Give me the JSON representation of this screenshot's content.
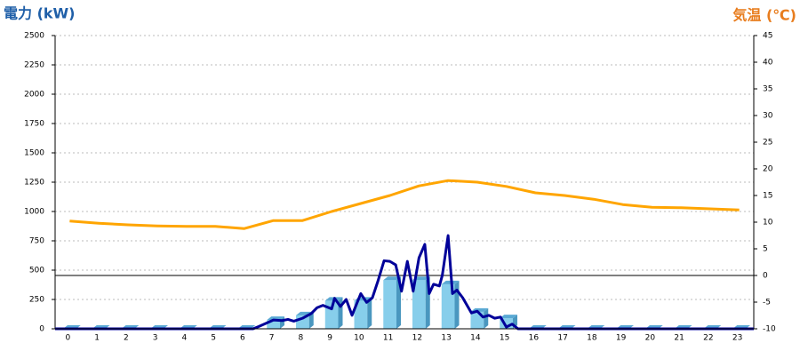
{
  "chart_data": {
    "type": "combo",
    "y_label": "電力 (kW)",
    "y2_label": "気温 (℃)",
    "categories": [
      "0",
      "1",
      "2",
      "3",
      "4",
      "5",
      "6",
      "7",
      "8",
      "9",
      "10",
      "11",
      "12",
      "13",
      "14",
      "15",
      "16",
      "17",
      "18",
      "19",
      "20",
      "21",
      "22",
      "23"
    ],
    "xlim": [
      -0.5,
      23.5
    ],
    "ylim": [
      0,
      2500
    ],
    "yticks": [
      0,
      250,
      500,
      750,
      1000,
      1250,
      1500,
      1750,
      2000,
      2250,
      2500
    ],
    "y2lim": [
      -10,
      45
    ],
    "y2ticks": [
      -10,
      -5,
      0,
      5,
      10,
      15,
      20,
      25,
      30,
      35,
      40,
      45
    ],
    "grid": true,
    "series": [
      {
        "type": "bar",
        "color": "#87ceeb",
        "values": [
          0,
          0,
          0,
          0,
          0,
          0,
          0,
          75,
          115,
          240,
          240,
          415,
          415,
          380,
          145,
          90,
          0,
          0,
          0,
          0,
          0,
          0,
          0,
          0
        ]
      },
      {
        "type": "line",
        "color": "#000099",
        "x": [
          -0.5,
          6.3,
          6.5,
          7,
          7.3,
          7.5,
          7.7,
          8,
          8.3,
          8.5,
          8.7,
          9,
          9.1,
          9.3,
          9.5,
          9.7,
          10,
          10.2,
          10.4,
          10.6,
          10.8,
          11,
          11.2,
          11.4,
          11.6,
          11.8,
          12,
          12.2,
          12.35,
          12.5,
          12.7,
          12.8,
          13,
          13.15,
          13.3,
          13.5,
          13.8,
          14,
          14.2,
          14.4,
          14.6,
          14.8,
          15,
          15.2,
          15.4,
          23.5
        ],
        "values": [
          0,
          0,
          20,
          75,
          70,
          80,
          65,
          90,
          130,
          180,
          200,
          170,
          260,
          190,
          250,
          115,
          300,
          225,
          265,
          415,
          580,
          575,
          545,
          320,
          575,
          320,
          605,
          720,
          300,
          380,
          365,
          455,
          795,
          300,
          330,
          265,
          135,
          150,
          100,
          115,
          90,
          100,
          15,
          40,
          0,
          0
        ]
      },
      {
        "type": "line",
        "axis": "y2",
        "color": "#ffa500",
        "values": [
          10.2,
          9.8,
          9.5,
          9.3,
          9.2,
          9.2,
          8.8,
          10.3,
          10.3,
          12,
          13.5,
          15,
          16.8,
          17.8,
          17.5,
          16.7,
          15.5,
          15,
          14.3,
          13.3,
          12.8,
          12.7,
          12.5,
          12.3
        ]
      }
    ]
  }
}
